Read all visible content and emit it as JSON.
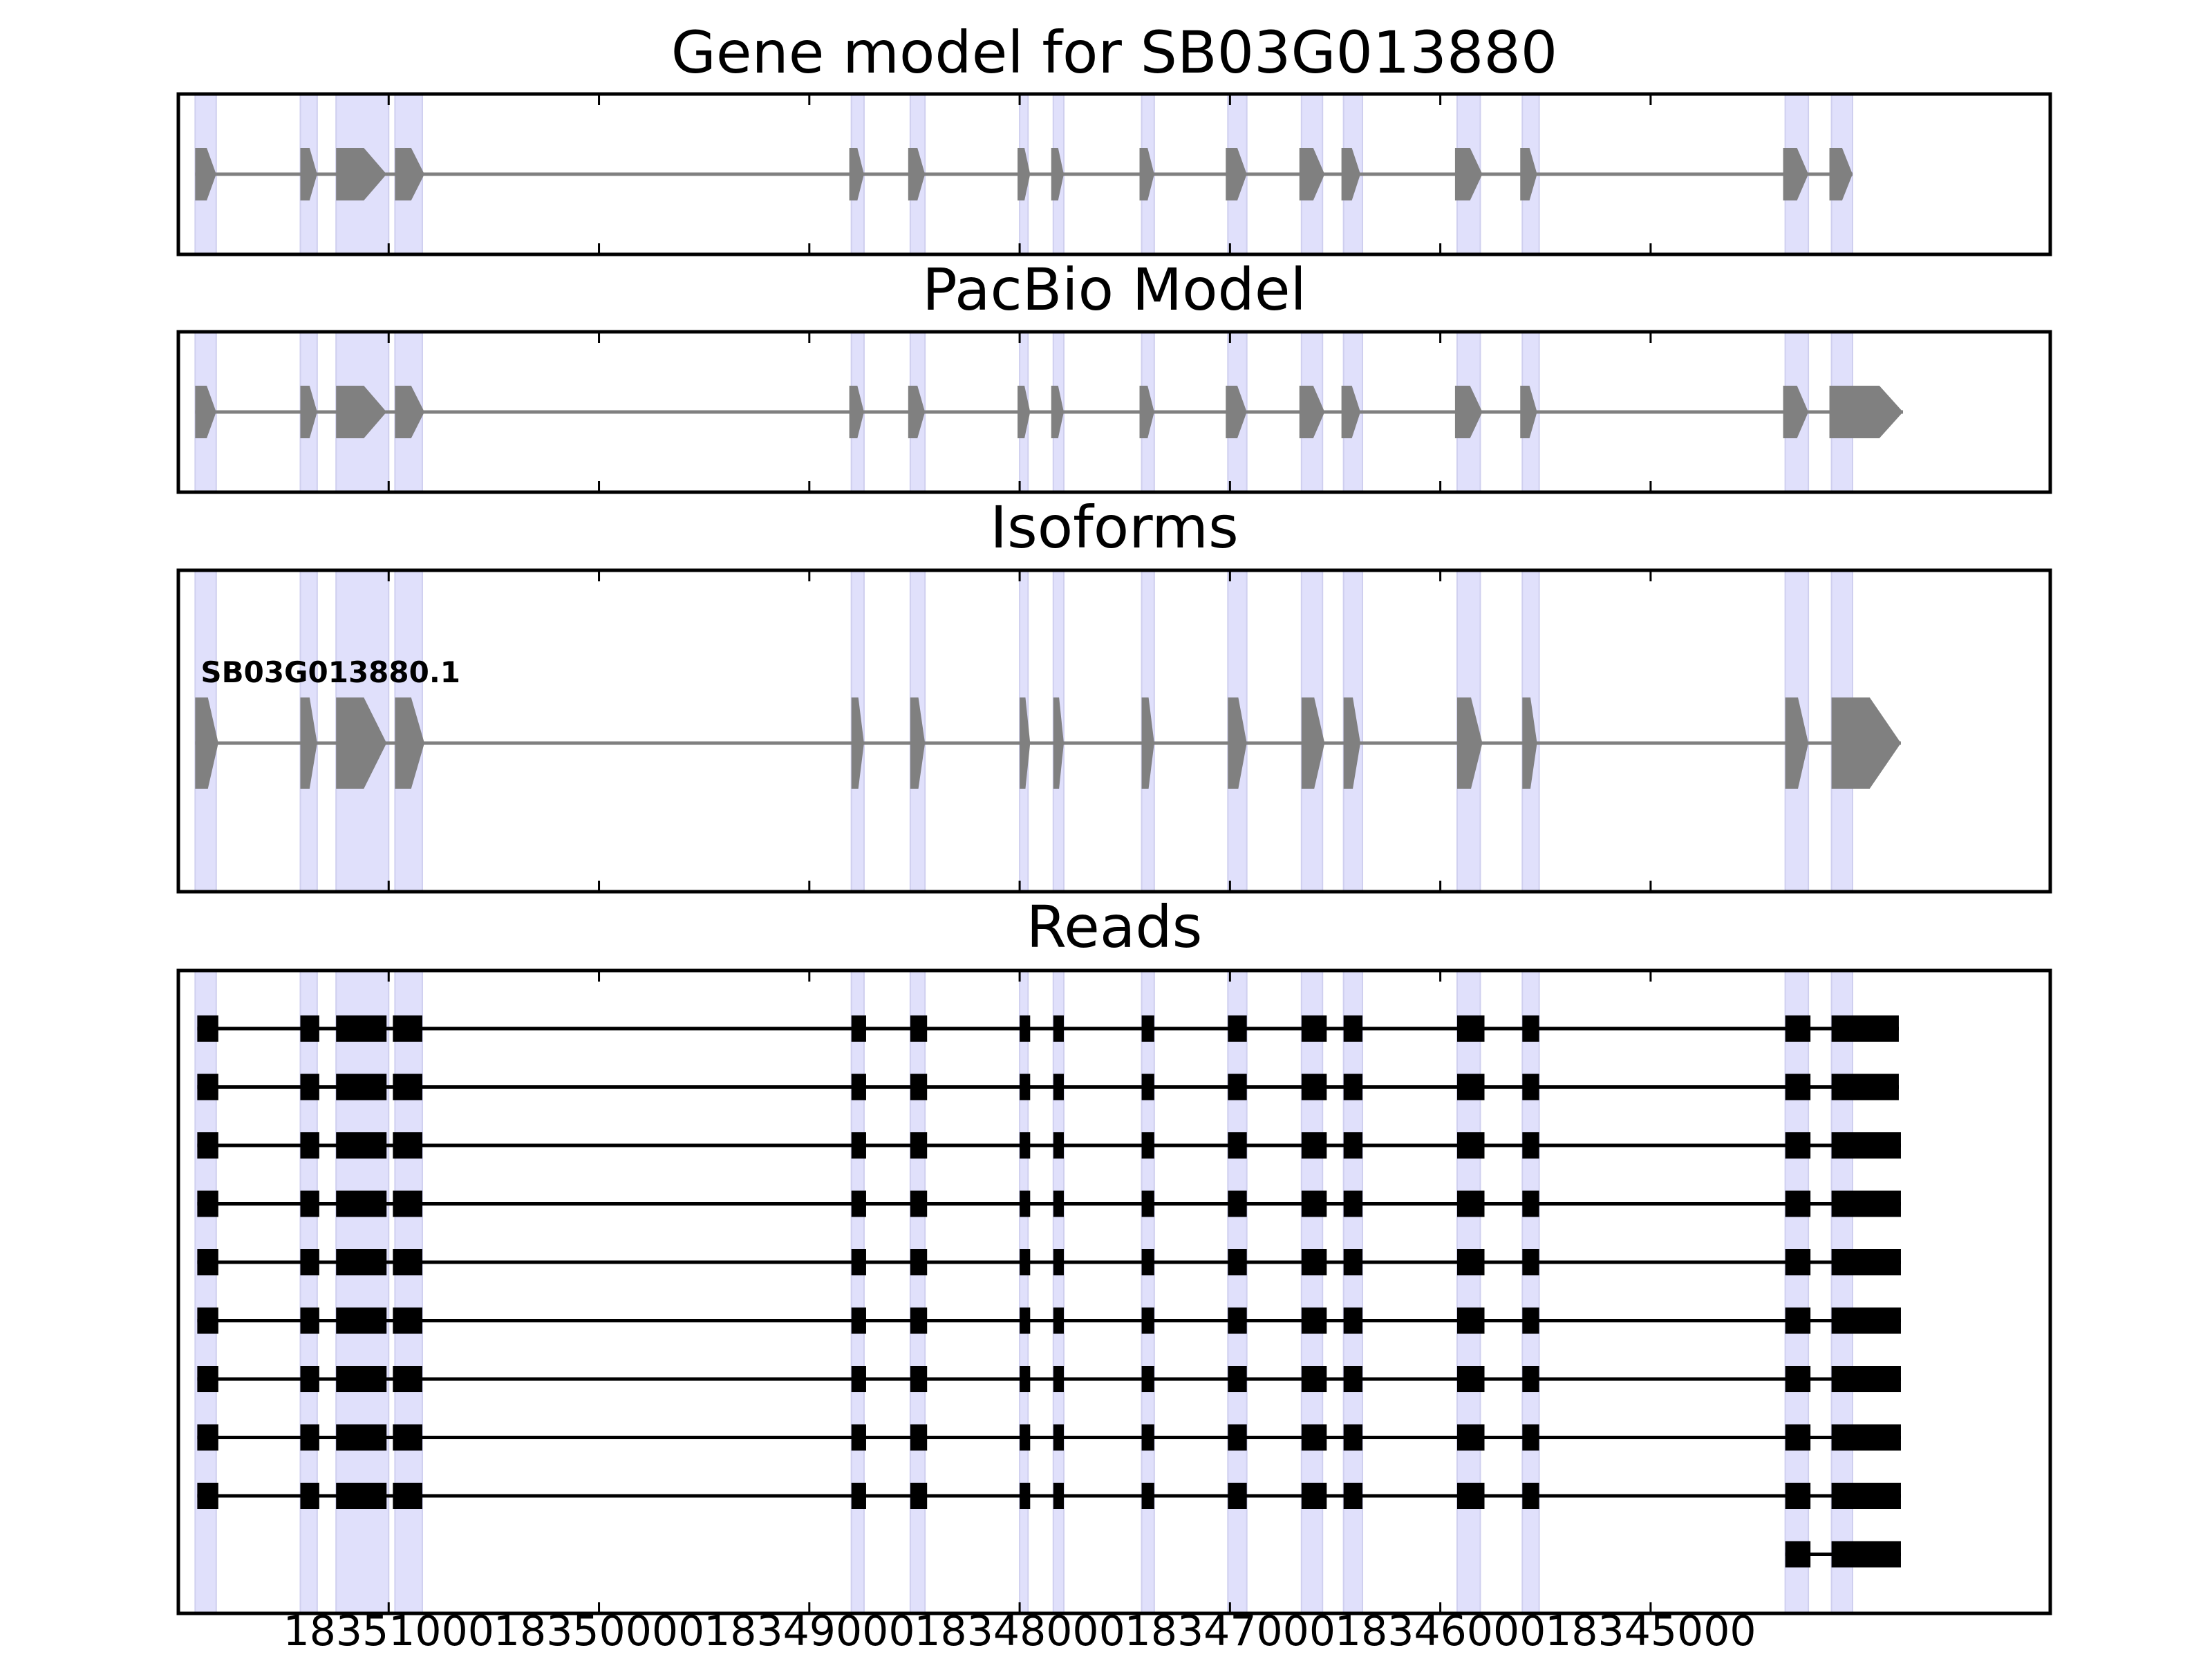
{
  "panels": [
    {
      "id": "gene-model",
      "title": "Gene model for SB03G013880"
    },
    {
      "id": "pacbio-model",
      "title": "PacBio Model"
    },
    {
      "id": "isoforms",
      "title": "Isoforms"
    },
    {
      "id": "reads",
      "title": "Reads"
    }
  ],
  "chart_data": {
    "type": "gene-structure",
    "x_axis": {
      "reversed": true,
      "range": [
        18352000,
        18343100
      ],
      "ticks": [
        18351000,
        18350000,
        18349000,
        18348000,
        18347000,
        18346000,
        18345000
      ],
      "tick_labels": [
        "18351000",
        "18350000",
        "18349000",
        "18348000",
        "18347000",
        "18346000",
        "18345000"
      ]
    },
    "highlight_exons": [
      [
        18351820,
        18351920
      ],
      [
        18351340,
        18351420
      ],
      [
        18351250,
        18351000
      ],
      [
        18350970,
        18350840
      ],
      [
        18348800,
        18348740
      ],
      [
        18348520,
        18348450
      ],
      [
        18348000,
        18347960
      ],
      [
        18347840,
        18347790
      ],
      [
        18347420,
        18347360
      ],
      [
        18347010,
        18346920
      ],
      [
        18346660,
        18346560
      ],
      [
        18346460,
        18346370
      ],
      [
        18345920,
        18345810
      ],
      [
        18345610,
        18345530
      ],
      [
        18344360,
        18344250
      ],
      [
        18344140,
        18344040
      ]
    ],
    "gene_model": {
      "strand": "-",
      "exons": [
        [
          18351820,
          18351920
        ],
        [
          18351340,
          18351420
        ],
        [
          18351250,
          18351010
        ],
        [
          18350970,
          18350830
        ],
        [
          18348810,
          18348740
        ],
        [
          18348530,
          18348450
        ],
        [
          18348010,
          18347950
        ],
        [
          18347850,
          18347790
        ],
        [
          18347430,
          18347360
        ],
        [
          18347020,
          18346920
        ],
        [
          18346670,
          18346550
        ],
        [
          18346470,
          18346380
        ],
        [
          18345930,
          18345800
        ],
        [
          18345620,
          18345540
        ],
        [
          18344370,
          18344250
        ],
        [
          18344150,
          18344040
        ]
      ]
    },
    "pacbio_model": {
      "strand": "-",
      "exons": [
        [
          18351820,
          18351920
        ],
        [
          18351340,
          18351420
        ],
        [
          18351250,
          18351010
        ],
        [
          18350970,
          18350830
        ],
        [
          18348810,
          18348740
        ],
        [
          18348530,
          18348450
        ],
        [
          18348010,
          18347950
        ],
        [
          18347850,
          18347790
        ],
        [
          18347430,
          18347360
        ],
        [
          18347020,
          18346920
        ],
        [
          18346670,
          18346550
        ],
        [
          18346470,
          18346380
        ],
        [
          18345930,
          18345800
        ],
        [
          18345620,
          18345540
        ],
        [
          18344370,
          18344250
        ],
        [
          18344150,
          18343800
        ]
      ]
    },
    "isoforms": [
      {
        "name": "SB03G013880.1",
        "strand": "-",
        "exons": [
          [
            18351810,
            18351920
          ],
          [
            18351340,
            18351420
          ],
          [
            18351250,
            18351010
          ],
          [
            18350970,
            18350830
          ],
          [
            18348800,
            18348740
          ],
          [
            18348520,
            18348450
          ],
          [
            18348000,
            18347950
          ],
          [
            18347840,
            18347790
          ],
          [
            18347420,
            18347360
          ],
          [
            18347010,
            18346920
          ],
          [
            18346660,
            18346550
          ],
          [
            18346460,
            18346380
          ],
          [
            18345920,
            18345800
          ],
          [
            18345610,
            18345540
          ],
          [
            18344360,
            18344250
          ],
          [
            18344140,
            18343810
          ]
        ]
      }
    ],
    "reads": [
      {
        "exons": [
          [
            18351810,
            18351910
          ],
          [
            18351330,
            18351420
          ],
          [
            18351250,
            18351010
          ],
          [
            18350980,
            18350840
          ],
          [
            18348800,
            18348730
          ],
          [
            18348520,
            18348440
          ],
          [
            18348000,
            18347950
          ],
          [
            18347840,
            18347790
          ],
          [
            18347420,
            18347360
          ],
          [
            18347010,
            18346920
          ],
          [
            18346660,
            18346540
          ],
          [
            18346460,
            18346370
          ],
          [
            18345920,
            18345790
          ],
          [
            18345610,
            18345530
          ],
          [
            18344360,
            18344240
          ],
          [
            18344140,
            18343820
          ]
        ]
      },
      {
        "exons": [
          [
            18351810,
            18351910
          ],
          [
            18351330,
            18351420
          ],
          [
            18351250,
            18351010
          ],
          [
            18350980,
            18350840
          ],
          [
            18348800,
            18348730
          ],
          [
            18348520,
            18348440
          ],
          [
            18348000,
            18347950
          ],
          [
            18347840,
            18347790
          ],
          [
            18347420,
            18347360
          ],
          [
            18347010,
            18346920
          ],
          [
            18346660,
            18346540
          ],
          [
            18346460,
            18346370
          ],
          [
            18345920,
            18345790
          ],
          [
            18345610,
            18345530
          ],
          [
            18344360,
            18344240
          ],
          [
            18344140,
            18343820
          ]
        ]
      },
      {
        "exons": [
          [
            18351810,
            18351910
          ],
          [
            18351330,
            18351420
          ],
          [
            18351250,
            18351010
          ],
          [
            18350980,
            18350840
          ],
          [
            18348800,
            18348730
          ],
          [
            18348520,
            18348440
          ],
          [
            18348000,
            18347950
          ],
          [
            18347840,
            18347790
          ],
          [
            18347420,
            18347360
          ],
          [
            18347010,
            18346920
          ],
          [
            18346660,
            18346540
          ],
          [
            18346460,
            18346370
          ],
          [
            18345920,
            18345790
          ],
          [
            18345610,
            18345530
          ],
          [
            18344360,
            18344240
          ],
          [
            18344140,
            18343810
          ]
        ]
      },
      {
        "exons": [
          [
            18351810,
            18351910
          ],
          [
            18351330,
            18351420
          ],
          [
            18351250,
            18351010
          ],
          [
            18350980,
            18350840
          ],
          [
            18348800,
            18348730
          ],
          [
            18348520,
            18348440
          ],
          [
            18348000,
            18347950
          ],
          [
            18347840,
            18347790
          ],
          [
            18347420,
            18347360
          ],
          [
            18347010,
            18346920
          ],
          [
            18346660,
            18346540
          ],
          [
            18346460,
            18346370
          ],
          [
            18345920,
            18345790
          ],
          [
            18345610,
            18345530
          ],
          [
            18344360,
            18344240
          ],
          [
            18344140,
            18343810
          ]
        ]
      },
      {
        "exons": [
          [
            18351810,
            18351910
          ],
          [
            18351330,
            18351420
          ],
          [
            18351250,
            18351010
          ],
          [
            18350980,
            18350840
          ],
          [
            18348800,
            18348730
          ],
          [
            18348520,
            18348440
          ],
          [
            18348000,
            18347950
          ],
          [
            18347840,
            18347790
          ],
          [
            18347420,
            18347360
          ],
          [
            18347010,
            18346920
          ],
          [
            18346660,
            18346540
          ],
          [
            18346460,
            18346370
          ],
          [
            18345920,
            18345790
          ],
          [
            18345610,
            18345530
          ],
          [
            18344360,
            18344240
          ],
          [
            18344140,
            18343810
          ]
        ]
      },
      {
        "exons": [
          [
            18351810,
            18351910
          ],
          [
            18351330,
            18351420
          ],
          [
            18351250,
            18351010
          ],
          [
            18350980,
            18350840
          ],
          [
            18348800,
            18348730
          ],
          [
            18348520,
            18348440
          ],
          [
            18348000,
            18347950
          ],
          [
            18347840,
            18347790
          ],
          [
            18347420,
            18347360
          ],
          [
            18347010,
            18346920
          ],
          [
            18346660,
            18346540
          ],
          [
            18346460,
            18346370
          ],
          [
            18345920,
            18345790
          ],
          [
            18345610,
            18345530
          ],
          [
            18344360,
            18344240
          ],
          [
            18344140,
            18343810
          ]
        ]
      },
      {
        "exons": [
          [
            18351810,
            18351910
          ],
          [
            18351330,
            18351420
          ],
          [
            18351250,
            18351010
          ],
          [
            18350980,
            18350840
          ],
          [
            18348800,
            18348730
          ],
          [
            18348520,
            18348440
          ],
          [
            18348000,
            18347950
          ],
          [
            18347840,
            18347790
          ],
          [
            18347420,
            18347360
          ],
          [
            18347010,
            18346920
          ],
          [
            18346660,
            18346540
          ],
          [
            18346460,
            18346370
          ],
          [
            18345920,
            18345790
          ],
          [
            18345610,
            18345530
          ],
          [
            18344360,
            18344240
          ],
          [
            18344140,
            18343810
          ]
        ]
      },
      {
        "exons": [
          [
            18351810,
            18351910
          ],
          [
            18351330,
            18351420
          ],
          [
            18351250,
            18351010
          ],
          [
            18350980,
            18350840
          ],
          [
            18348800,
            18348730
          ],
          [
            18348520,
            18348440
          ],
          [
            18348000,
            18347950
          ],
          [
            18347840,
            18347790
          ],
          [
            18347420,
            18347360
          ],
          [
            18347010,
            18346920
          ],
          [
            18346660,
            18346540
          ],
          [
            18346460,
            18346370
          ],
          [
            18345920,
            18345790
          ],
          [
            18345610,
            18345530
          ],
          [
            18344360,
            18344240
          ],
          [
            18344140,
            18343810
          ]
        ]
      },
      {
        "exons": [
          [
            18351810,
            18351910
          ],
          [
            18351330,
            18351420
          ],
          [
            18351250,
            18351010
          ],
          [
            18350980,
            18350840
          ],
          [
            18348800,
            18348730
          ],
          [
            18348520,
            18348440
          ],
          [
            18348000,
            18347950
          ],
          [
            18347840,
            18347790
          ],
          [
            18347420,
            18347360
          ],
          [
            18347010,
            18346920
          ],
          [
            18346660,
            18346540
          ],
          [
            18346460,
            18346370
          ],
          [
            18345920,
            18345790
          ],
          [
            18345610,
            18345530
          ],
          [
            18344360,
            18344240
          ],
          [
            18344140,
            18343810
          ]
        ]
      },
      {
        "exons": [
          [
            18344360,
            18344240
          ],
          [
            18344140,
            18343810
          ]
        ]
      }
    ],
    "colors": {
      "highlight": "#e0e0fb",
      "model_exon": "#808080",
      "model_intron": "#808080",
      "read": "#000000",
      "frame": "#000000"
    }
  }
}
